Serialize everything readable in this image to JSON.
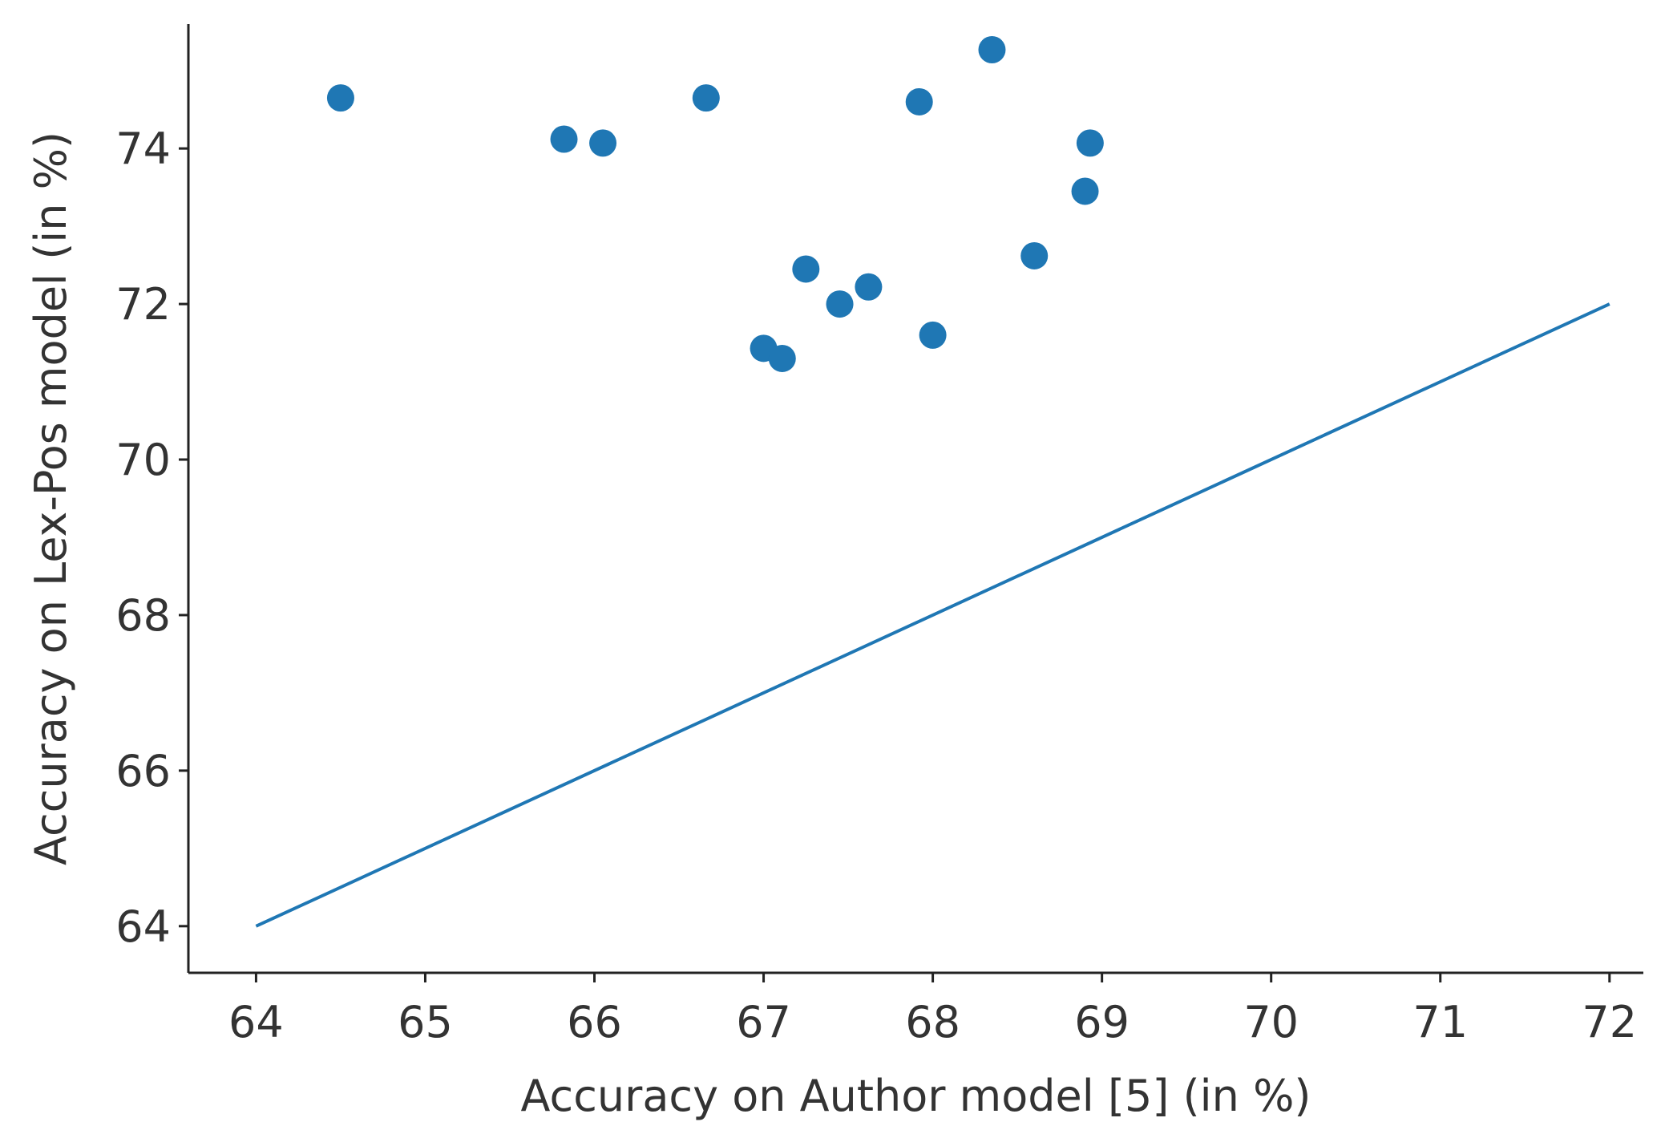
{
  "chart_data": {
    "type": "scatter",
    "title": "",
    "xlabel": "Accuracy on Author model [5] (in %)",
    "ylabel": "Accuracy on Lex-Pos model (in %)",
    "xlim": [
      63.6,
      72.2
    ],
    "ylim": [
      63.4,
      75.6
    ],
    "xticks": [
      64,
      65,
      66,
      67,
      68,
      69,
      70,
      71,
      72
    ],
    "yticks": [
      64,
      66,
      68,
      70,
      72,
      74
    ],
    "x_tick_labels": [
      "64",
      "65",
      "66",
      "67",
      "68",
      "69",
      "70",
      "71",
      "72"
    ],
    "y_tick_labels": [
      "64",
      "66",
      "68",
      "70",
      "72",
      "74"
    ],
    "grid": false,
    "series": [
      {
        "type": "scatter",
        "color": "#1f77b4",
        "points": [
          {
            "x": 64.5,
            "y": 74.65
          },
          {
            "x": 65.82,
            "y": 74.12
          },
          {
            "x": 66.05,
            "y": 74.07
          },
          {
            "x": 66.66,
            "y": 74.65
          },
          {
            "x": 67.0,
            "y": 71.43
          },
          {
            "x": 67.11,
            "y": 71.3
          },
          {
            "x": 67.25,
            "y": 72.45
          },
          {
            "x": 67.45,
            "y": 72.0
          },
          {
            "x": 67.62,
            "y": 72.22
          },
          {
            "x": 67.92,
            "y": 74.6
          },
          {
            "x": 68.0,
            "y": 71.6
          },
          {
            "x": 68.35,
            "y": 75.27
          },
          {
            "x": 68.6,
            "y": 72.62
          },
          {
            "x": 68.9,
            "y": 73.45
          },
          {
            "x": 68.93,
            "y": 74.07
          }
        ]
      },
      {
        "type": "line",
        "color": "#1f77b4",
        "points": [
          {
            "x": 64,
            "y": 64
          },
          {
            "x": 72,
            "y": 72
          }
        ]
      }
    ]
  }
}
